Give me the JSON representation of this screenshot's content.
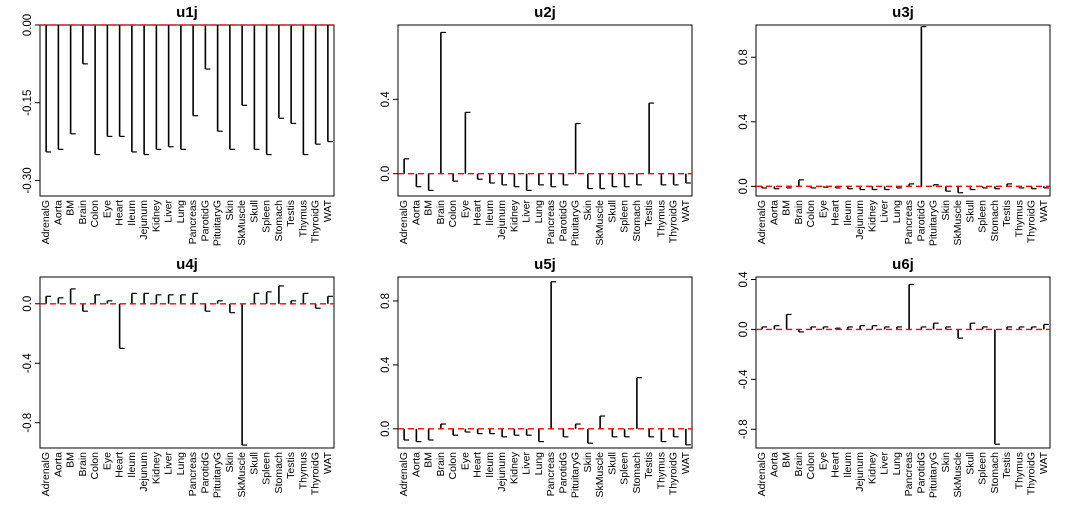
{
  "chart_data": [
    {
      "type": "bar",
      "title": "u1j",
      "categories": [
        "AdrenalG",
        "Aorta",
        "BM",
        "Brain",
        "Colon",
        "Eye",
        "Heart",
        "Ileum",
        "Jejunum",
        "Kidney",
        "Liver",
        "Lung",
        "Pancreas",
        "ParotidG",
        "PituitaryG",
        "Skin",
        "SkMuscle",
        "Skull",
        "Spleen",
        "Stomach",
        "Testis",
        "Thymus",
        "ThyroidG",
        "WAT"
      ],
      "values": [
        -0.245,
        -0.24,
        -0.21,
        -0.075,
        -0.25,
        -0.215,
        -0.215,
        -0.245,
        -0.25,
        -0.24,
        -0.235,
        -0.24,
        -0.175,
        -0.085,
        -0.205,
        -0.24,
        -0.155,
        -0.24,
        -0.25,
        -0.18,
        -0.19,
        -0.25,
        -0.23,
        -0.225
      ],
      "yticks": [
        -0.3,
        -0.15,
        0.0
      ],
      "ytick_labels": [
        "-0.30",
        "-0.15",
        "0.00"
      ],
      "ylim": [
        -0.33,
        0.0
      ],
      "xlabel": "",
      "ylabel": ""
    },
    {
      "type": "bar",
      "title": "u2j",
      "categories": [
        "AdrenalG",
        "Aorta",
        "BM",
        "Brain",
        "Colon",
        "Eye",
        "Heart",
        "Ileum",
        "Jejunum",
        "Kidney",
        "Liver",
        "Lung",
        "Pancreas",
        "ParotidG",
        "PituitaryG",
        "Skin",
        "SkMuscle",
        "Skull",
        "Spleen",
        "Stomach",
        "Testis",
        "Thymus",
        "ThyroidG",
        "WAT"
      ],
      "values": [
        0.08,
        -0.07,
        -0.09,
        0.76,
        -0.04,
        0.33,
        -0.03,
        -0.05,
        -0.06,
        -0.07,
        -0.09,
        -0.06,
        -0.07,
        -0.06,
        0.27,
        -0.08,
        -0.08,
        -0.07,
        -0.07,
        -0.06,
        0.38,
        -0.06,
        -0.06,
        -0.05
      ],
      "yticks": [
        0.0,
        0.4
      ],
      "ytick_labels": [
        "0.0",
        "0.4"
      ],
      "ylim": [
        -0.12,
        0.8
      ],
      "xlabel": "",
      "ylabel": ""
    },
    {
      "type": "bar",
      "title": "u3j",
      "categories": [
        "AdrenalG",
        "Aorta",
        "BM",
        "Brain",
        "Colon",
        "Eye",
        "Heart",
        "Ileum",
        "Jejunum",
        "Kidney",
        "Liver",
        "Lung",
        "Pancreas",
        "ParotidG",
        "PituitaryG",
        "Skin",
        "SkMuscle",
        "Skull",
        "Spleen",
        "Stomach",
        "Testis",
        "Thymus",
        "ThyroidG",
        "WAT"
      ],
      "values": [
        -0.01,
        -0.015,
        -0.01,
        0.04,
        -0.01,
        -0.005,
        -0.01,
        -0.015,
        -0.02,
        -0.02,
        -0.02,
        -0.01,
        0.015,
        0.99,
        0.01,
        -0.03,
        -0.04,
        -0.02,
        -0.01,
        -0.015,
        0.015,
        -0.01,
        -0.015,
        -0.01
      ],
      "yticks": [
        0.0,
        0.4,
        0.8
      ],
      "ytick_labels": [
        "0.0",
        "0.4",
        "0.8"
      ],
      "ylim": [
        -0.06,
        1.0
      ],
      "xlabel": "",
      "ylabel": ""
    },
    {
      "type": "bar",
      "title": "u4j",
      "categories": [
        "AdrenalG",
        "Aorta",
        "BM",
        "Brain",
        "Colon",
        "Eye",
        "Heart",
        "Ileum",
        "Jejunum",
        "Kidney",
        "Liver",
        "Lung",
        "Pancreas",
        "ParotidG",
        "PituitaryG",
        "Skin",
        "SkMuscle",
        "Skull",
        "Spleen",
        "Stomach",
        "Testis",
        "Thymus",
        "ThyroidG",
        "WAT"
      ],
      "values": [
        0.05,
        0.04,
        0.1,
        -0.05,
        0.06,
        0.02,
        -0.3,
        0.07,
        0.07,
        0.06,
        0.06,
        0.06,
        0.07,
        -0.05,
        0.02,
        -0.06,
        -0.95,
        0.07,
        0.08,
        0.12,
        0.02,
        0.07,
        -0.03,
        0.05
      ],
      "yticks": [
        -0.8,
        -0.4,
        0.0
      ],
      "ytick_labels": [
        "-0.8",
        "-0.4",
        "0.0"
      ],
      "ylim": [
        -0.97,
        0.18
      ],
      "xlabel": "",
      "ylabel": ""
    },
    {
      "type": "bar",
      "title": "u5j",
      "categories": [
        "AdrenalG",
        "Aorta",
        "BM",
        "Brain",
        "Colon",
        "Eye",
        "Heart",
        "Ileum",
        "Jejunum",
        "Kidney",
        "Liver",
        "Lung",
        "Pancreas",
        "ParotidG",
        "PituitaryG",
        "Skin",
        "SkMuscle",
        "Skull",
        "Spleen",
        "Stomach",
        "Testis",
        "Thymus",
        "ThyroidG",
        "WAT"
      ],
      "values": [
        -0.07,
        -0.08,
        -0.07,
        0.03,
        -0.04,
        -0.02,
        -0.03,
        -0.03,
        -0.05,
        -0.04,
        -0.04,
        -0.08,
        0.92,
        -0.05,
        0.03,
        -0.09,
        0.08,
        -0.05,
        -0.05,
        0.32,
        -0.05,
        -0.08,
        -0.05,
        -0.1
      ],
      "yticks": [
        0.0,
        0.4,
        0.8
      ],
      "ytick_labels": [
        "0.0",
        "0.4",
        "0.8"
      ],
      "ylim": [
        -0.12,
        0.95
      ],
      "xlabel": "",
      "ylabel": ""
    },
    {
      "type": "bar",
      "title": "u6j",
      "categories": [
        "AdrenalG",
        "Aorta",
        "BM",
        "Brain",
        "Colon",
        "Eye",
        "Heart",
        "Ileum",
        "Jejunum",
        "Kidney",
        "Liver",
        "Lung",
        "Pancreas",
        "ParotidG",
        "PituitaryG",
        "Skin",
        "SkMuscle",
        "Skull",
        "Spleen",
        "Stomach",
        "Testis",
        "Thymus",
        "ThyroidG",
        "WAT"
      ],
      "values": [
        0.02,
        0.03,
        0.12,
        -0.02,
        0.02,
        0.02,
        0.01,
        0.02,
        0.03,
        0.03,
        0.02,
        0.02,
        0.36,
        0.02,
        0.05,
        0.02,
        -0.07,
        0.05,
        0.02,
        -0.92,
        0.02,
        0.02,
        0.02,
        0.04
      ],
      "yticks": [
        -0.8,
        -0.4,
        0.0,
        0.4
      ],
      "ytick_labels": [
        "-0.8",
        "-0.4",
        "0.0",
        "0.4"
      ],
      "ylim": [
        -0.95,
        0.42
      ],
      "xlabel": "",
      "ylabel": ""
    }
  ],
  "style": {
    "bar_color": "#000000",
    "zero_line_color": "#ff0000",
    "axis_color": "#000000"
  }
}
